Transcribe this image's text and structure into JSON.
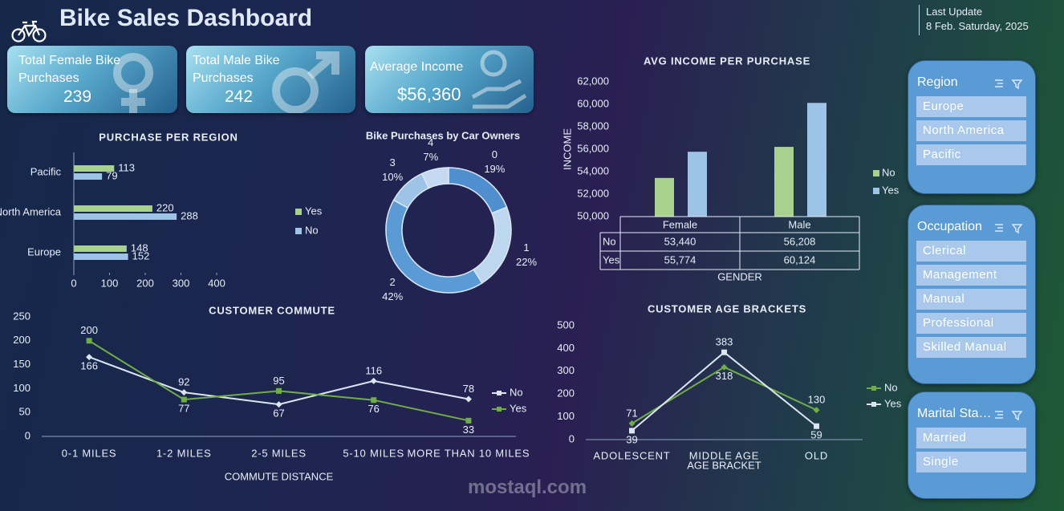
{
  "header": {
    "title": "Bike Sales Dashboard",
    "last_update_label": "Last Update",
    "last_update": "8  Feb. Saturday, 2025"
  },
  "kpis": [
    {
      "label": "Total Female Bike Purchases",
      "value": 239
    },
    {
      "label": "Total Male Bike Purchases",
      "value": 242
    },
    {
      "label": "Average Income",
      "value": "$56,360"
    }
  ],
  "slicers": [
    {
      "title": "Region",
      "items": [
        "Europe",
        "North America",
        "Pacific"
      ]
    },
    {
      "title": "Occupation",
      "items": [
        "Clerical",
        "Management",
        "Manual",
        "Professional",
        "Skilled Manual"
      ]
    },
    {
      "title": "Marital Status",
      "items": [
        "Married",
        "Single"
      ]
    }
  ],
  "watermark": "mostaql.com",
  "chart_data": [
    {
      "type": "bar",
      "orientation": "horizontal",
      "title": "PURCHASE PER REGION",
      "categories": [
        "Pacific",
        "North America",
        "Europe"
      ],
      "series": [
        {
          "name": "Yes",
          "color": "#a9d18e",
          "values": [
            113,
            220,
            148
          ]
        },
        {
          "name": "No",
          "color": "#9dc3e6",
          "values": [
            79,
            288,
            152
          ]
        }
      ],
      "xlim": [
        0,
        400
      ],
      "xticks": [
        0,
        100,
        200,
        300,
        400
      ]
    },
    {
      "type": "donut",
      "title": "Bike Purchases by Car Owners",
      "categories": [
        "0",
        "1",
        "2",
        "3",
        "4"
      ],
      "values": [
        19,
        22,
        42,
        10,
        7
      ],
      "value_labels": [
        "19%",
        "22%",
        "42%",
        "10%",
        "7%"
      ],
      "colors": [
        "#4f8fd0",
        "#bdd7ee",
        "#5b9bd5",
        "#9dc3e6",
        "#c5d9f1"
      ]
    },
    {
      "type": "bar",
      "orientation": "vertical",
      "title": "AVG INCOME PER PURCHASE",
      "ylabel": "INCOME",
      "xlabel": "GENDER",
      "categories": [
        "Female",
        "Male"
      ],
      "series": [
        {
          "name": "No",
          "color": "#a9d18e",
          "values": [
            53440,
            56208
          ],
          "value_labels": [
            "53,440",
            "56,208"
          ]
        },
        {
          "name": "Yes",
          "color": "#9dc3e6",
          "values": [
            55774,
            60124
          ],
          "value_labels": [
            "55,774",
            "60,124"
          ]
        }
      ],
      "ylim": [
        50000,
        62000
      ],
      "yticks": [
        {
          "value": 50000,
          "label": "50,000"
        },
        {
          "value": 52000,
          "label": "52,000"
        },
        {
          "value": 54000,
          "label": "54,000"
        },
        {
          "value": 56000,
          "label": "56,000"
        },
        {
          "value": 58000,
          "label": "58,000"
        },
        {
          "value": 60000,
          "label": "60,000"
        },
        {
          "value": 62000,
          "label": "62,000"
        }
      ],
      "data_table": true
    },
    {
      "type": "line",
      "title": "CUSTOMER COMMUTE",
      "xlabel": "COMMUTE DISTANCE",
      "categories": [
        "0-1 MILES",
        "1-2 MILES",
        "2-5 MILES",
        "5-10 MILES",
        "MORE THAN 10 MILES"
      ],
      "series": [
        {
          "name": "No",
          "color": "#dce6f2",
          "marker": "diamond",
          "values": [
            166,
            92,
            67,
            116,
            78
          ]
        },
        {
          "name": "Yes",
          "color": "#70ad47",
          "marker": "square",
          "values": [
            200,
            77,
            95,
            76,
            33
          ]
        }
      ],
      "ylim": [
        0,
        250
      ],
      "yticks": [
        0,
        50,
        100,
        150,
        200,
        250
      ]
    },
    {
      "type": "line",
      "title": "CUSTOMER AGE BRACKETS",
      "xlabel": "AGE BRACKET",
      "categories": [
        "ADOLESCENT",
        "MIDDLE AGE",
        "OLD"
      ],
      "series": [
        {
          "name": "No",
          "color": "#70ad47",
          "marker": "diamond",
          "values": [
            71,
            318,
            130
          ]
        },
        {
          "name": "Yes",
          "color": "#dce6f2",
          "marker": "square",
          "values": [
            39,
            383,
            59
          ]
        }
      ],
      "ylim": [
        0,
        500
      ],
      "yticks": [
        0,
        100,
        200,
        300,
        400,
        500
      ]
    }
  ]
}
